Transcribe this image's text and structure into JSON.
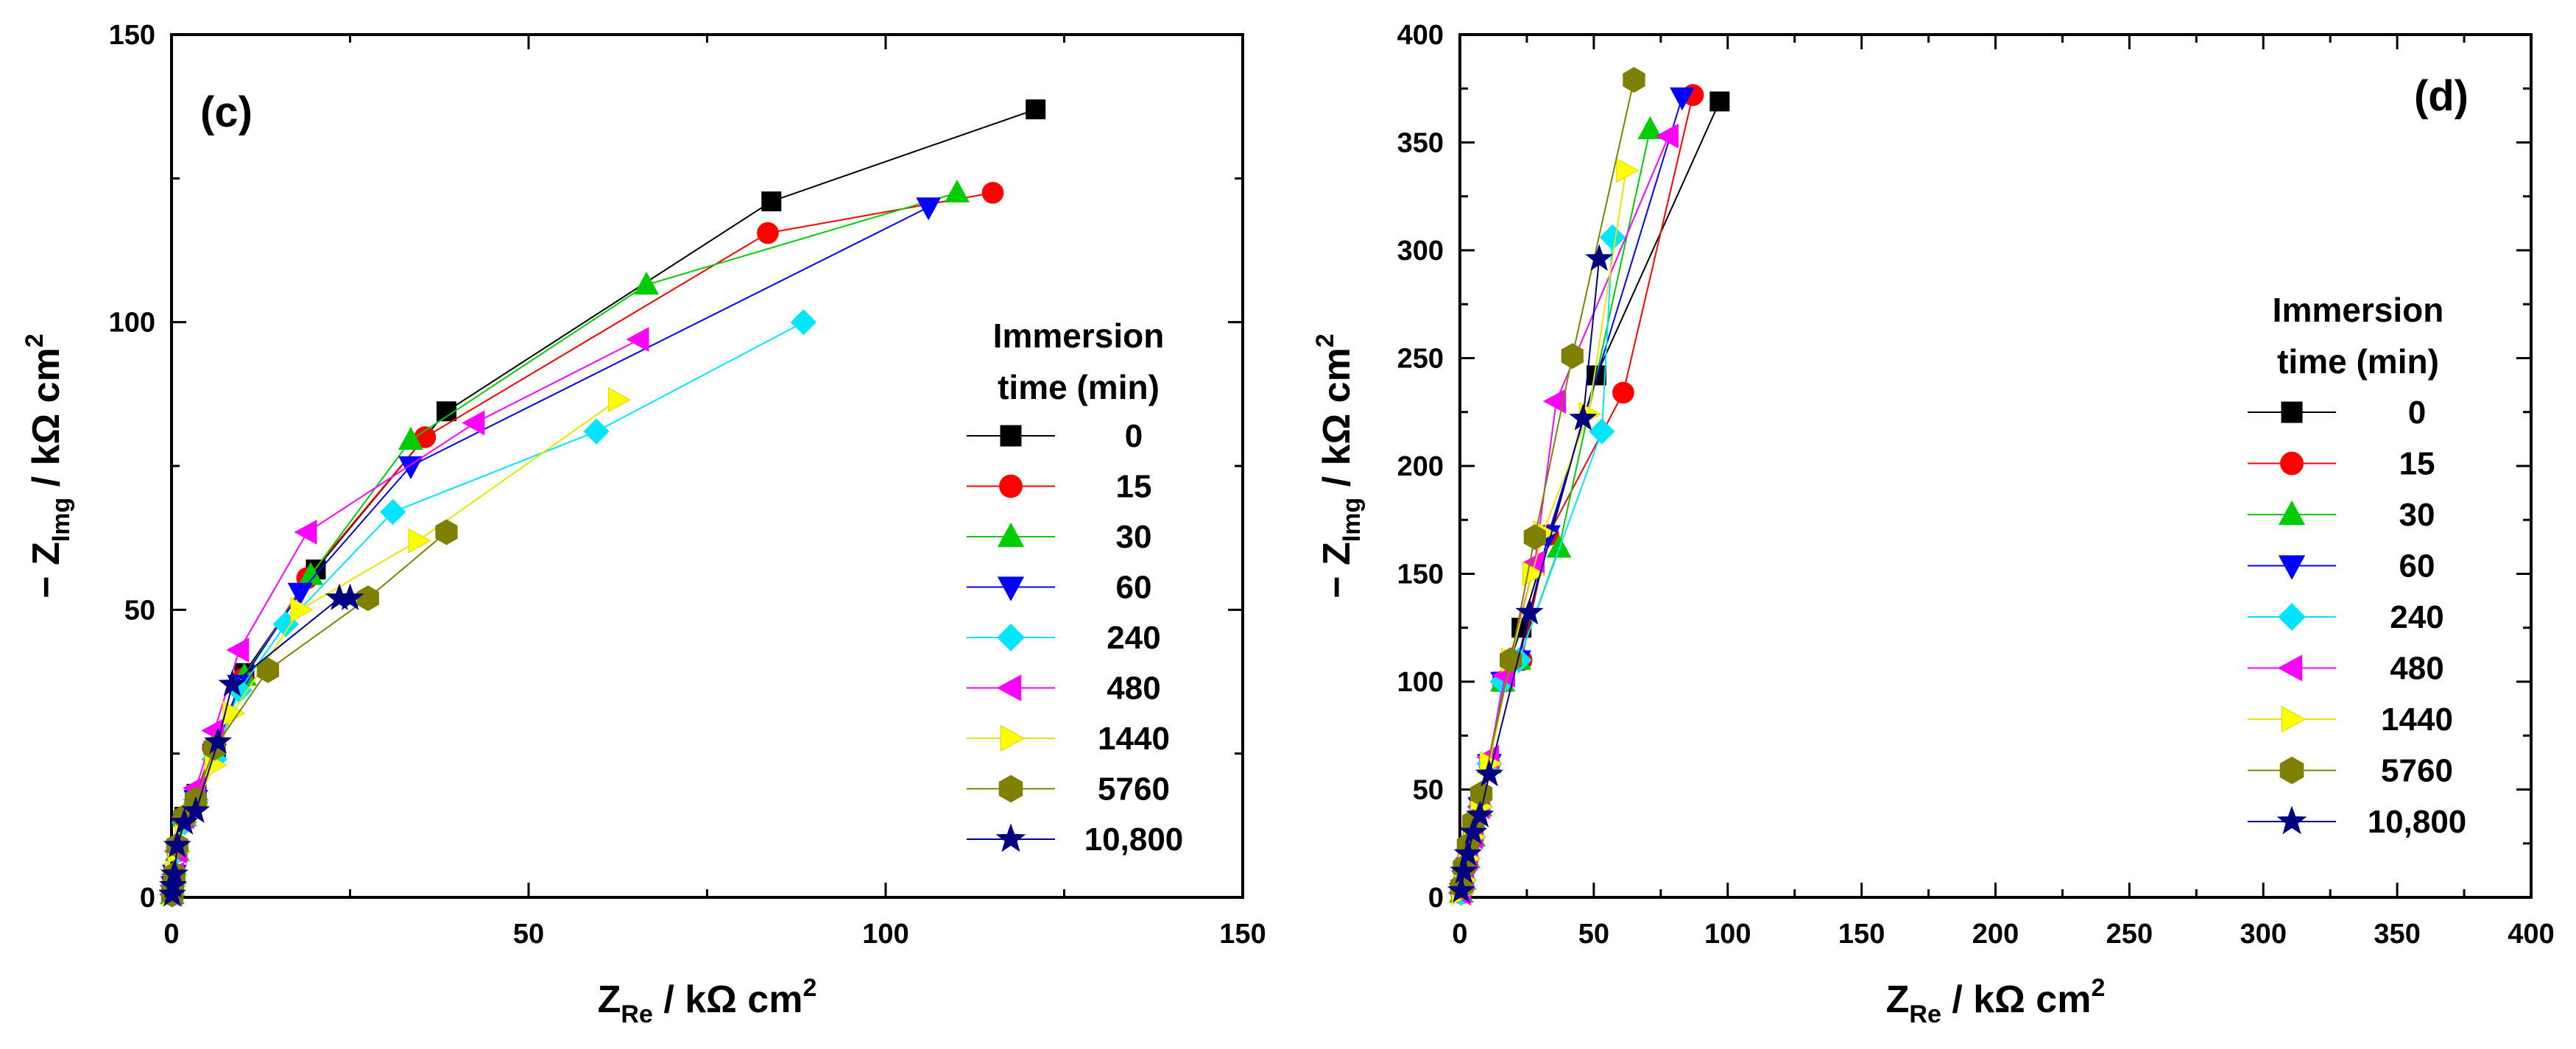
{
  "figure": {
    "legend_title_line1": "Immersion",
    "legend_title_line2": "time  (min)"
  },
  "chart_data": [
    {
      "type": "scatter",
      "panel_label": "(c)",
      "xlabel": {
        "prefix": "Z",
        "sub": "Re",
        "suffix": " / kΩ cm",
        "sup": "2"
      },
      "ylabel": {
        "prefix": "− Z",
        "sub": "Img",
        "suffix": " / kΩ cm",
        "sup": "2"
      },
      "xlim": [
        0,
        150
      ],
      "ylim": [
        0,
        150
      ],
      "xticks": [
        0,
        50,
        100,
        150
      ],
      "yticks": [
        0,
        50,
        100,
        150
      ],
      "x_tick_labels": [
        "0",
        "50",
        "100",
        "150"
      ],
      "y_tick_labels": [
        "0",
        "50",
        "100",
        "150"
      ],
      "grid": false,
      "legend_position": "right",
      "series": [
        {
          "name": "0",
          "marker": "square",
          "color": "#000000",
          "x": [
            0.1,
            0.2,
            0.4,
            0.8,
            1.8,
            3.5,
            6.2,
            10.2,
            20.2,
            38.5,
            84.0,
            121.0
          ],
          "y": [
            0.5,
            2,
            4,
            8,
            14,
            18,
            26,
            39,
            57,
            84.5,
            121,
            137
          ]
        },
        {
          "name": "15",
          "marker": "circle",
          "color": "#ff0000",
          "x": [
            0.1,
            0.2,
            0.4,
            0.8,
            1.8,
            3.4,
            5.8,
            10.0,
            19.0,
            35.5,
            83.5,
            115.0
          ],
          "y": [
            0.5,
            2,
            4,
            8,
            14,
            18,
            26,
            38,
            55.5,
            80,
            115.5,
            122.5
          ]
        },
        {
          "name": "30",
          "marker": "triangle-up",
          "color": "#00cc00",
          "x": [
            0.1,
            0.2,
            0.4,
            0.8,
            1.8,
            3.4,
            6.0,
            10.2,
            19.5,
            33.5,
            66.5,
            110.0
          ],
          "y": [
            0.5,
            2,
            4,
            8,
            14,
            18,
            25.5,
            38.5,
            56,
            79.5,
            106.5,
            122.5
          ]
        },
        {
          "name": "60",
          "marker": "triangle-down",
          "color": "#0000ff",
          "x": [
            0.1,
            0.2,
            0.4,
            0.8,
            1.8,
            3.4,
            6.0,
            9.5,
            18.0,
            33.5,
            106.0
          ],
          "y": [
            0.5,
            2,
            4,
            8,
            13,
            17,
            25,
            37,
            53,
            75,
            120
          ]
        },
        {
          "name": "240",
          "marker": "diamond",
          "color": "#00e5ff",
          "x": [
            0.1,
            0.2,
            0.4,
            0.8,
            1.8,
            3.4,
            6.0,
            9.5,
            16.0,
            31.0,
            59.5,
            88.5
          ],
          "y": [
            0.5,
            2,
            4,
            8,
            13,
            17,
            24,
            36,
            47.5,
            67,
            81,
            100
          ]
        },
        {
          "name": "480",
          "marker": "triangle-left",
          "color": "#ff00ff",
          "x": [
            0.1,
            0.2,
            0.4,
            0.8,
            1.8,
            3.4,
            6.0,
            9.5,
            19.0,
            42.5,
            65.5
          ],
          "y": [
            0.5,
            2,
            4,
            8,
            14,
            19,
            29,
            43,
            63.5,
            82.5,
            97
          ]
        },
        {
          "name": "1440",
          "marker": "triangle-right",
          "color": "#ffff00",
          "x": [
            0.1,
            0.2,
            0.4,
            0.8,
            1.8,
            3.4,
            6.0,
            8.5,
            18.0,
            34.5,
            62.5
          ],
          "y": [
            0.5,
            2,
            4,
            8,
            13,
            16,
            23,
            32,
            50,
            62,
            86.5
          ]
        },
        {
          "name": "5760",
          "marker": "hexagon",
          "color": "#808000",
          "x": [
            0.1,
            0.2,
            0.4,
            0.8,
            1.8,
            3.4,
            6.0,
            13.5,
            27.5,
            38.5
          ],
          "y": [
            0.5,
            2,
            4,
            9,
            14,
            17,
            26,
            39.5,
            52,
            63.5
          ]
        },
        {
          "name": "10,800",
          "marker": "star",
          "color": "#000080",
          "x": [
            0.1,
            0.2,
            0.4,
            0.8,
            1.8,
            3.4,
            6.5,
            8.5,
            23.5,
            25.0
          ],
          "y": [
            0.5,
            2,
            4,
            9,
            13,
            15,
            27,
            37,
            52,
            52
          ]
        }
      ]
    },
    {
      "type": "scatter",
      "panel_label": "(d)",
      "xlabel": {
        "prefix": "Z",
        "sub": "Re",
        "suffix": " / kΩ cm",
        "sup": "2"
      },
      "ylabel": {
        "prefix": "− Z",
        "sub": "Img",
        "suffix": " / kΩ cm",
        "sup": "2"
      },
      "xlim": [
        0,
        400
      ],
      "ylim": [
        0,
        400
      ],
      "xticks": [
        0,
        50,
        100,
        150,
        200,
        250,
        300,
        350,
        400
      ],
      "yticks": [
        0,
        50,
        100,
        150,
        200,
        250,
        300,
        350,
        400
      ],
      "x_tick_labels": [
        "0",
        "50",
        "100",
        "150",
        "200",
        "250",
        "300",
        "350",
        "400"
      ],
      "y_tick_labels": [
        "0",
        "50",
        "100",
        "150",
        "200",
        "250",
        "300",
        "350",
        "400"
      ],
      "grid": false,
      "legend_position": "right",
      "series": [
        {
          "name": "0",
          "marker": "square",
          "color": "#000000",
          "x": [
            0.5,
            1.5,
            3,
            5,
            7.5,
            11,
            16,
            23,
            51,
            97
          ],
          "y": [
            2,
            8,
            18,
            28,
            42,
            62,
            100,
            125,
            242,
            369
          ]
        },
        {
          "name": "15",
          "marker": "circle",
          "color": "#ff0000",
          "x": [
            0.5,
            1.5,
            3,
            5,
            7.5,
            11,
            16,
            23,
            33,
            61,
            87
          ],
          "y": [
            2,
            8,
            18,
            28,
            42,
            62,
            100,
            110,
            168,
            234,
            372
          ]
        },
        {
          "name": "30",
          "marker": "triangle-up",
          "color": "#00cc00",
          "x": [
            0.5,
            1.5,
            3,
            5,
            7.5,
            11,
            16,
            22,
            37,
            71
          ],
          "y": [
            2,
            8,
            18,
            28,
            42,
            62,
            100,
            110,
            162,
            356
          ]
        },
        {
          "name": "60",
          "marker": "triangle-down",
          "color": "#0000ff",
          "x": [
            0.5,
            1.5,
            3,
            5,
            7.5,
            11,
            16,
            22,
            33,
            83
          ],
          "y": [
            2,
            8,
            18,
            28,
            42,
            62,
            100,
            110,
            168,
            371
          ]
        },
        {
          "name": "240",
          "marker": "diamond",
          "color": "#00e5ff",
          "x": [
            0.5,
            1.5,
            3,
            5,
            7.5,
            11,
            16,
            22,
            53,
            57
          ],
          "y": [
            2,
            8,
            18,
            28,
            42,
            62,
            100,
            110,
            216,
            306
          ]
        },
        {
          "name": "480",
          "marker": "triangle-left",
          "color": "#ff00ff",
          "x": [
            0.5,
            1.5,
            3,
            5,
            7.5,
            11,
            17,
            28,
            36,
            78
          ],
          "y": [
            2,
            8,
            18,
            28,
            42,
            65,
            103,
            155,
            230,
            353
          ]
        },
        {
          "name": "1440",
          "marker": "triangle-right",
          "color": "#ffff00",
          "x": [
            0.5,
            1.5,
            3,
            5,
            7.5,
            11,
            19,
            27,
            31,
            48,
            62
          ],
          "y": [
            2,
            8,
            18,
            28,
            42,
            62,
            110,
            150,
            169,
            224,
            337
          ]
        },
        {
          "name": "5760",
          "marker": "hexagon",
          "color": "#808000",
          "x": [
            0.5,
            1.5,
            3,
            5,
            8,
            19,
            28,
            42,
            65
          ],
          "y": [
            5,
            14,
            24,
            35,
            48,
            110,
            167,
            251,
            379
          ]
        },
        {
          "name": "10,800",
          "marker": "star",
          "color": "#000080",
          "x": [
            0.5,
            1.5,
            3,
            5,
            7.5,
            11,
            26,
            46,
            52
          ],
          "y": [
            3,
            12,
            20,
            30,
            38,
            57,
            132,
            222,
            296
          ]
        }
      ]
    }
  ]
}
